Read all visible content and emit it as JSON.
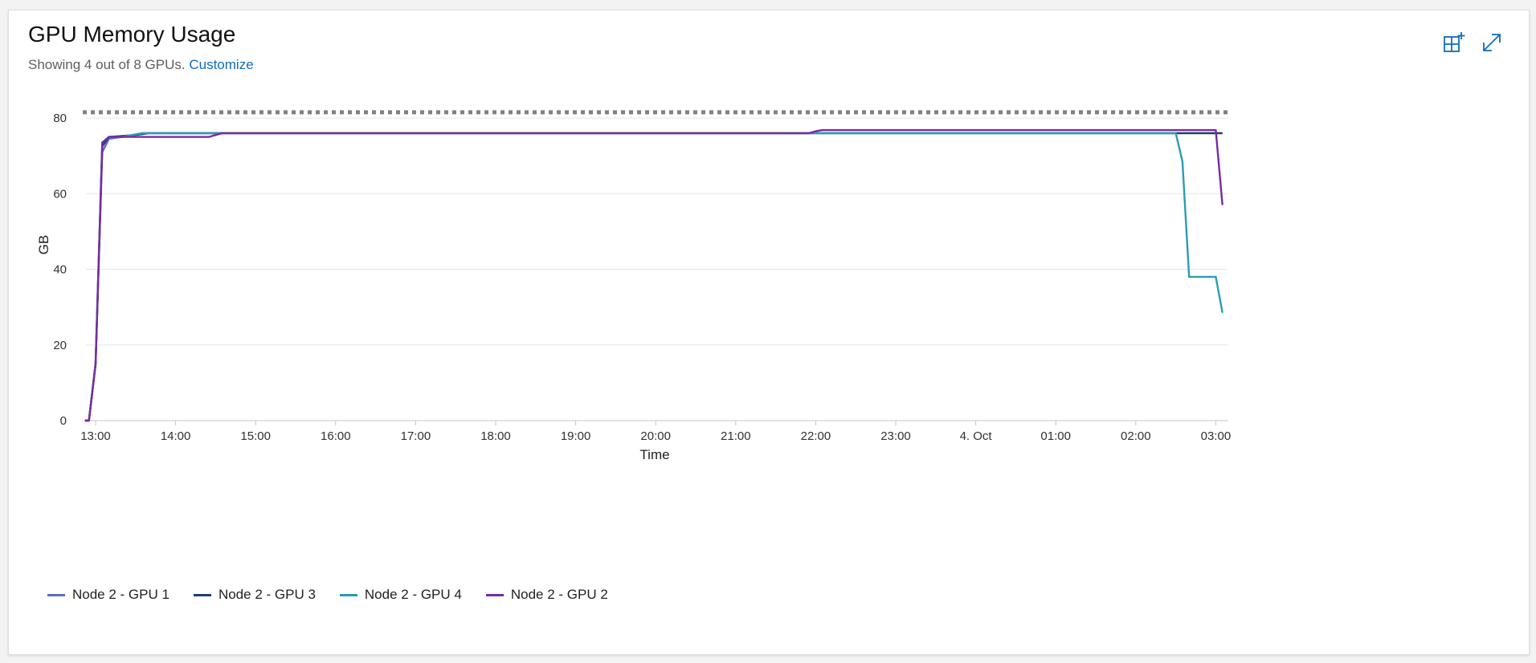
{
  "panel": {
    "title": "GPU Memory Usage",
    "subtitle_prefix": "Showing 4 out of 8 GPUs.",
    "customize_link": "Customize",
    "icons": [
      "add-to-dashboard-icon",
      "expand-icon"
    ],
    "accent_color": "#0f6cbd"
  },
  "chart_data": {
    "type": "line",
    "title": "GPU Memory Usage",
    "xlabel": "Time",
    "ylabel": "GB",
    "ylim": [
      0,
      80
    ],
    "yticks": [
      0,
      20,
      40,
      60,
      80
    ],
    "xlim": [
      "12:52",
      "03:10"
    ],
    "xticks": [
      {
        "t": "13:00",
        "label": "13:00"
      },
      {
        "t": "14:00",
        "label": "14:00"
      },
      {
        "t": "15:00",
        "label": "15:00"
      },
      {
        "t": "16:00",
        "label": "16:00"
      },
      {
        "t": "17:00",
        "label": "17:00"
      },
      {
        "t": "18:00",
        "label": "18:00"
      },
      {
        "t": "19:00",
        "label": "19:00"
      },
      {
        "t": "20:00",
        "label": "20:00"
      },
      {
        "t": "21:00",
        "label": "21:00"
      },
      {
        "t": "22:00",
        "label": "22:00"
      },
      {
        "t": "23:00",
        "label": "23:00"
      },
      {
        "t": "00:00",
        "label": "4. Oct"
      },
      {
        "t": "01:00",
        "label": "01:00"
      },
      {
        "t": "02:00",
        "label": "02:00"
      },
      {
        "t": "03:00",
        "label": "03:00"
      }
    ],
    "reference_line": {
      "value": 81.5,
      "style": "dotted",
      "color": "#808080"
    },
    "grid": true,
    "legend_position": "bottom-left",
    "series": [
      {
        "name": "Node 2 - GPU 1",
        "color": "#5b6bd5",
        "points": [
          [
            "12:52",
            0
          ],
          [
            "12:55",
            0
          ],
          [
            "13:00",
            15
          ],
          [
            "13:05",
            71
          ],
          [
            "13:10",
            74.5
          ],
          [
            "13:20",
            75
          ],
          [
            "13:35",
            76
          ],
          [
            "14:00",
            76
          ],
          [
            "22:00",
            76
          ],
          [
            "23:00",
            76
          ],
          [
            "00:00",
            76
          ],
          [
            "02:30",
            76
          ],
          [
            "03:00",
            76
          ],
          [
            "03:05",
            76
          ]
        ]
      },
      {
        "name": "Node 2 - GPU 3",
        "color": "#1d3f6e",
        "points": [
          [
            "12:52",
            0
          ],
          [
            "12:55",
            0
          ],
          [
            "13:00",
            15
          ],
          [
            "13:05",
            72.5
          ],
          [
            "13:10",
            75
          ],
          [
            "13:30",
            75.5
          ],
          [
            "13:40",
            76
          ],
          [
            "14:00",
            76
          ],
          [
            "22:00",
            76
          ],
          [
            "23:00",
            76
          ],
          [
            "00:00",
            76
          ],
          [
            "02:30",
            76
          ],
          [
            "03:00",
            76
          ],
          [
            "03:05",
            76
          ]
        ]
      },
      {
        "name": "Node 2 - GPU 4",
        "color": "#2a9db5",
        "points": [
          [
            "12:52",
            0
          ],
          [
            "12:55",
            0
          ],
          [
            "13:00",
            15
          ],
          [
            "13:05",
            73.5
          ],
          [
            "13:10",
            75
          ],
          [
            "13:20",
            75
          ],
          [
            "13:35",
            76
          ],
          [
            "14:00",
            76
          ],
          [
            "22:00",
            76
          ],
          [
            "02:30",
            76
          ],
          [
            "02:35",
            68.5
          ],
          [
            "02:40",
            38
          ],
          [
            "03:00",
            38
          ],
          [
            "03:05",
            28.5
          ]
        ]
      },
      {
        "name": "Node 2 - GPU 2",
        "color": "#7a2aa0",
        "points": [
          [
            "12:52",
            0
          ],
          [
            "12:55",
            0
          ],
          [
            "13:00",
            15
          ],
          [
            "13:05",
            73.5
          ],
          [
            "13:10",
            75
          ],
          [
            "13:20",
            75
          ],
          [
            "13:30",
            75
          ],
          [
            "14:25",
            75
          ],
          [
            "14:30",
            75.5
          ],
          [
            "14:35",
            76
          ],
          [
            "21:55",
            76
          ],
          [
            "22:00",
            76.5
          ],
          [
            "22:05",
            76.8
          ],
          [
            "23:00",
            76.8
          ],
          [
            "00:00",
            76.8
          ],
          [
            "02:30",
            76.8
          ],
          [
            "03:00",
            76.8
          ],
          [
            "03:05",
            57
          ]
        ]
      }
    ]
  }
}
